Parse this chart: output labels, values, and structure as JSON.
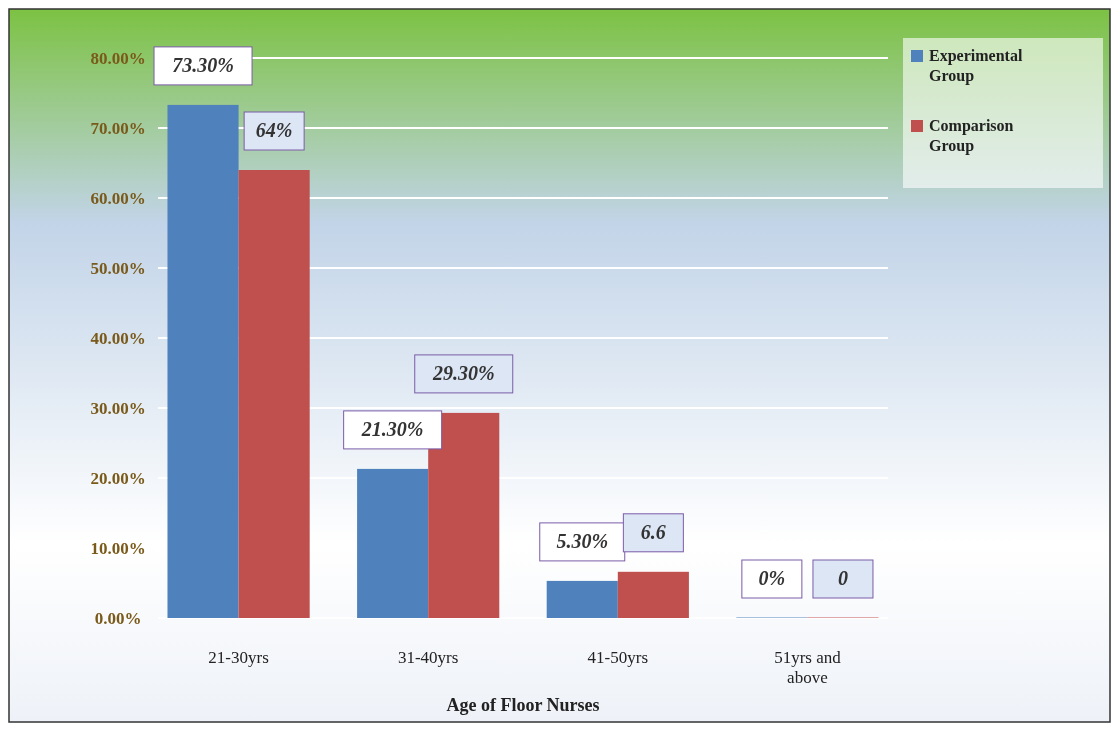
{
  "chart_data": {
    "type": "bar",
    "xlabel": "Age of Floor Nurses",
    "categories": [
      "21-30yrs",
      "31-40yrs",
      "41-50yrs",
      "51yrs and above"
    ],
    "series": [
      {
        "name": "Experimental Group",
        "color": "#4f81bd",
        "values": [
          73.3,
          21.3,
          5.3,
          0
        ],
        "value_labels": [
          "73.30%",
          "21.30%",
          "5.30%",
          "0%"
        ]
      },
      {
        "name": "Comparison Group",
        "color": "#c0504d",
        "values": [
          64,
          29.3,
          6.6,
          0
        ],
        "value_labels": [
          "64%",
          "29.30%",
          "6.6",
          "0"
        ]
      }
    ],
    "ylim": [
      0,
      80
    ],
    "yticks": [
      {
        "value": 0,
        "label": "0.00%"
      },
      {
        "value": 10,
        "label": "10.00%"
      },
      {
        "value": 20,
        "label": "20.00%"
      },
      {
        "value": 30,
        "label": "30.00%"
      },
      {
        "value": 40,
        "label": "40.00%"
      },
      {
        "value": 50,
        "label": "50.00%"
      },
      {
        "value": 60,
        "label": "60.00%"
      },
      {
        "value": 70,
        "label": "70.00%"
      },
      {
        "value": 80,
        "label": "80.00%"
      }
    ],
    "grid": "y",
    "legend": "top right"
  }
}
